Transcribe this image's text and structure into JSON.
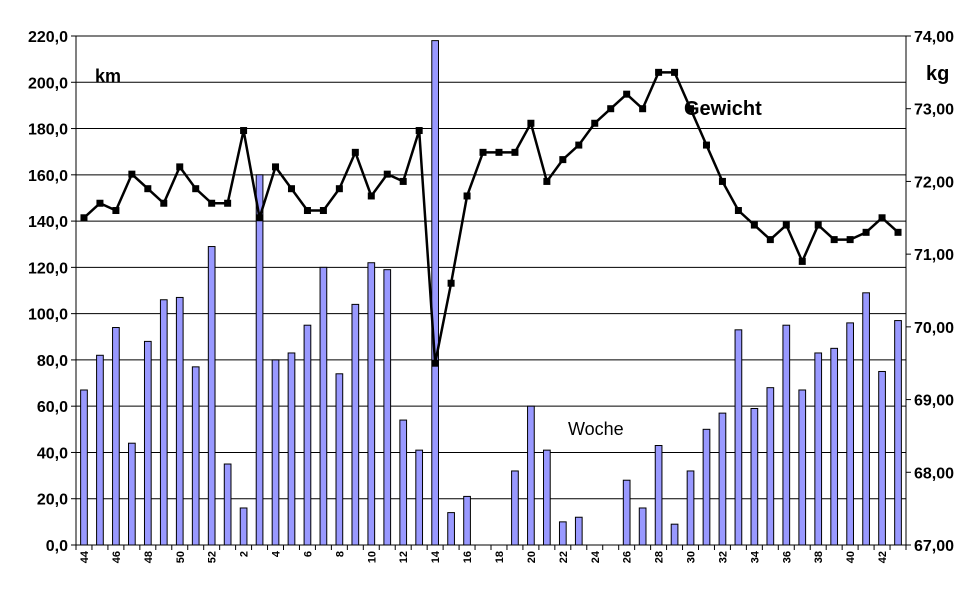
{
  "chart_data": {
    "type": "bar+line",
    "title": "",
    "x_label": "Woche",
    "y_left_label": "km",
    "y_right_label": "kg",
    "line_label": "Gewicht",
    "categories": [
      "44",
      "45",
      "46",
      "47",
      "48",
      "49",
      "50",
      "51",
      "52",
      "1",
      "2",
      "3",
      "4",
      "5",
      "6",
      "7",
      "8",
      "9",
      "10",
      "11",
      "12",
      "13",
      "14",
      "15",
      "16",
      "17",
      "18",
      "19",
      "20",
      "21",
      "22",
      "23",
      "24",
      "25",
      "26",
      "27",
      "28",
      "29",
      "30",
      "31",
      "32",
      "33",
      "34",
      "35",
      "36",
      "37",
      "38",
      "39",
      "40",
      "41",
      "42",
      "43"
    ],
    "x_tick_labels": [
      "44",
      "46",
      "48",
      "50",
      "52",
      "2",
      "4",
      "6",
      "8",
      "10",
      "12",
      "14",
      "16",
      "18",
      "20",
      "22",
      "24",
      "26",
      "28",
      "30",
      "32",
      "34",
      "36",
      "38",
      "40",
      "42"
    ],
    "y_left_ticks": [
      "0,0",
      "20,0",
      "40,0",
      "60,0",
      "80,0",
      "100,0",
      "120,0",
      "140,0",
      "160,0",
      "180,0",
      "200,0",
      "220,0"
    ],
    "y_right_ticks": [
      "67,00",
      "68,00",
      "69,00",
      "70,00",
      "71,00",
      "72,00",
      "73,00",
      "74,00"
    ],
    "y_left_range": [
      0,
      220
    ],
    "y_right_range": [
      67,
      74
    ],
    "grid": "horizontal",
    "bar_series": {
      "axis": "left",
      "color": "#9999ff",
      "values": [
        67,
        82,
        94,
        44,
        88,
        106,
        107,
        77,
        129,
        35,
        16,
        160,
        80,
        83,
        95,
        120,
        74,
        104,
        122,
        119,
        54,
        41,
        218,
        14,
        21,
        0,
        0,
        32,
        60,
        41,
        10,
        12,
        0,
        0,
        28,
        16,
        43,
        9,
        32,
        50,
        57,
        93,
        59,
        68,
        95,
        67,
        83,
        85,
        96,
        109,
        75,
        97
      ]
    },
    "line_series": {
      "axis": "right",
      "color": "#000000",
      "values": [
        71.5,
        71.7,
        71.6,
        72.1,
        71.9,
        71.7,
        72.2,
        71.9,
        71.7,
        71.7,
        72.7,
        71.5,
        72.2,
        71.9,
        71.6,
        71.6,
        71.9,
        72.4,
        71.8,
        72.1,
        72.0,
        72.7,
        69.5,
        70.6,
        71.8,
        72.4,
        72.4,
        72.4,
        72.8,
        72.0,
        72.3,
        72.5,
        72.8,
        73.0,
        73.2,
        73.0,
        73.5,
        73.5,
        73.0,
        72.5,
        72.0,
        71.6,
        71.4,
        71.2,
        71.4,
        70.9,
        71.4,
        71.2,
        71.2,
        71.3,
        71.5,
        71.3
      ]
    }
  }
}
